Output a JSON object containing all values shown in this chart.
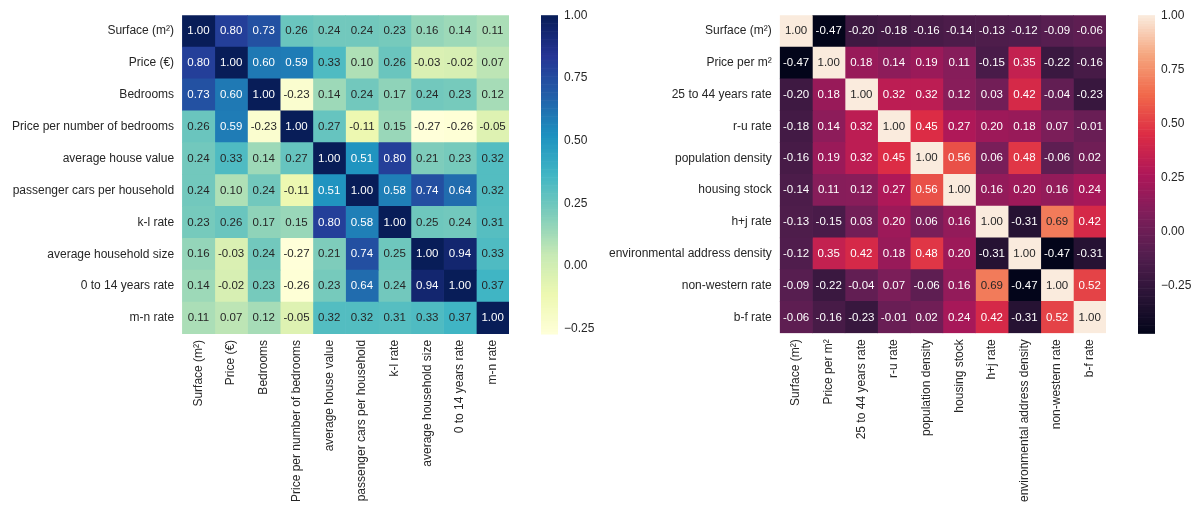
{
  "chart_data": [
    {
      "type": "heatmap",
      "categories": [
        "Surface (m²)",
        "Price (€)",
        "Bedrooms",
        "Price per number of bedrooms",
        "average house value",
        "passenger cars per household",
        "k-l rate",
        "average household size",
        "0 to 14 years rate",
        "m-n rate"
      ],
      "y_categories": [
        "Surface (m²)",
        "Price (€)",
        "Bedrooms",
        "Price per number of bedrooms",
        "average house value",
        "passenger cars per household",
        "k-l rate",
        "average household size",
        "0 to 14 years rate",
        "m-n rate"
      ],
      "cells": [
        [
          1.0,
          0.8,
          0.73,
          0.26,
          0.24,
          0.24,
          0.23,
          0.16,
          0.14,
          0.11
        ],
        [
          0.8,
          1.0,
          0.6,
          0.59,
          0.33,
          0.1,
          0.26,
          -0.03,
          -0.02,
          0.07
        ],
        [
          0.73,
          0.6,
          1.0,
          -0.23,
          0.14,
          0.24,
          0.17,
          0.24,
          0.23,
          0.12
        ],
        [
          0.26,
          0.59,
          -0.23,
          1.0,
          0.27,
          -0.11,
          0.15,
          -0.27,
          -0.26,
          -0.05
        ],
        [
          0.24,
          0.33,
          0.14,
          0.27,
          1.0,
          0.51,
          0.8,
          0.21,
          0.23,
          0.32
        ],
        [
          0.24,
          0.1,
          0.24,
          -0.11,
          0.51,
          1.0,
          0.58,
          0.74,
          0.64,
          0.32
        ],
        [
          0.23,
          0.26,
          0.17,
          0.15,
          0.8,
          0.58,
          1.0,
          0.25,
          0.24,
          0.31
        ],
        [
          0.16,
          -0.03,
          0.24,
          -0.27,
          0.21,
          0.74,
          0.25,
          1.0,
          0.94,
          0.33
        ],
        [
          0.14,
          -0.02,
          0.23,
          -0.26,
          0.23,
          0.64,
          0.24,
          0.94,
          1.0,
          0.37
        ],
        [
          0.11,
          0.07,
          0.12,
          -0.05,
          0.32,
          0.32,
          0.31,
          0.33,
          0.37,
          1.0
        ]
      ],
      "cell_labels": [
        [
          "1.00",
          "0.80",
          "0.73",
          "0.26",
          "0.24",
          "0.24",
          "0.23",
          "0.16",
          "0.14",
          "0.11"
        ],
        [
          "0.80",
          "1.00",
          "0.60",
          "0.59",
          "0.33",
          "0.10",
          "0.26",
          "-0.03",
          "-0.02",
          "0.07"
        ],
        [
          "0.73",
          "0.60",
          "1.00",
          "-0.23",
          "0.14",
          "0.24",
          "0.17",
          "0.24",
          "0.23",
          "0.12"
        ],
        [
          "0.26",
          "0.59",
          "-0.23",
          "1.00",
          "0.27",
          "-0.11",
          "0.15",
          "-0.27",
          "-0.26",
          "-0.05"
        ],
        [
          "0.24",
          "0.33",
          "0.14",
          "0.27",
          "1.00",
          "0.51",
          "0.80",
          "0.21",
          "0.23",
          "0.32"
        ],
        [
          "0.24",
          "0.10",
          "0.24",
          "-0.11",
          "0.51",
          "1.00",
          "0.58",
          "0.74",
          "0.64",
          "0.32"
        ],
        [
          "0.23",
          "0.26",
          "0.17",
          "0.15",
          "0.80",
          "0.58",
          "1.00",
          "0.25",
          "0.24",
          "0.31"
        ],
        [
          "0.16",
          "-0.03",
          "0.24",
          "-0.27",
          "0.21",
          "0.74",
          "0.25",
          "1.00",
          "0.94",
          "0.33"
        ],
        [
          "0.14",
          "-0.02",
          "0.23",
          "-0.26",
          "0.23",
          "0.64",
          "0.24",
          "0.94",
          "1.00",
          "0.37"
        ],
        [
          "0.11",
          "0.07",
          "0.12",
          "-0.05",
          "0.32",
          "0.32",
          "0.31",
          "0.33",
          "0.37",
          "1.00"
        ]
      ],
      "clim": [
        -0.27,
        1.0
      ],
      "cticks": [
        {
          "value": -0.25,
          "label": "−0.25"
        },
        {
          "value": 0,
          "label": "0.00"
        },
        {
          "value": 0.25,
          "label": "0.25"
        },
        {
          "value": 0.5,
          "label": "0.50"
        },
        {
          "value": 0.75,
          "label": "0.75"
        },
        {
          "value": 1,
          "label": "1.00"
        }
      ]
    },
    {
      "type": "heatmap",
      "categories": [
        "Surface (m²)",
        "Price per m²",
        "25 to 44 years rate",
        "r-u rate",
        "population density",
        "housing stock",
        "h+j rate",
        "environmental address density",
        "non-western rate",
        "b-f rate"
      ],
      "y_categories": [
        "Surface (m²)",
        "Price per m²",
        "25 to 44 years rate",
        "r-u rate",
        "population density",
        "housing stock",
        "h+j rate",
        "environmental address density",
        "non-western rate",
        "b-f rate"
      ],
      "cells": [
        [
          1.0,
          -0.47,
          -0.2,
          -0.18,
          -0.16,
          -0.14,
          -0.13,
          -0.12,
          -0.09,
          -0.06
        ],
        [
          -0.47,
          1.0,
          0.18,
          0.14,
          0.19,
          0.11,
          -0.15,
          0.35,
          -0.22,
          -0.16
        ],
        [
          -0.2,
          0.18,
          1.0,
          0.32,
          0.32,
          0.12,
          0.03,
          0.42,
          -0.04,
          -0.23
        ],
        [
          -0.18,
          0.14,
          0.32,
          1.0,
          0.45,
          0.27,
          0.2,
          0.18,
          0.07,
          -0.01
        ],
        [
          -0.16,
          0.19,
          0.32,
          0.45,
          1.0,
          0.56,
          0.06,
          0.48,
          -0.06,
          0.02
        ],
        [
          -0.14,
          0.11,
          0.12,
          0.27,
          0.56,
          1.0,
          0.16,
          0.2,
          0.16,
          0.24
        ],
        [
          -0.13,
          -0.15,
          0.03,
          0.2,
          0.06,
          0.16,
          1.0,
          -0.31,
          0.69,
          0.42
        ],
        [
          -0.12,
          0.35,
          0.42,
          0.18,
          0.48,
          0.2,
          -0.31,
          1.0,
          -0.47,
          -0.31
        ],
        [
          -0.09,
          -0.22,
          -0.04,
          0.07,
          -0.06,
          0.16,
          0.69,
          -0.47,
          1.0,
          0.52
        ],
        [
          -0.06,
          -0.16,
          -0.23,
          -0.01,
          0.02,
          0.24,
          0.42,
          -0.31,
          0.52,
          1.0
        ]
      ],
      "cell_labels": [
        [
          "1.00",
          "-0.47",
          "-0.20",
          "-0.18",
          "-0.16",
          "-0.14",
          "-0.13",
          "-0.12",
          "-0.09",
          "-0.06"
        ],
        [
          "-0.47",
          "1.00",
          "0.18",
          "0.14",
          "0.19",
          "0.11",
          "-0.15",
          "0.35",
          "-0.22",
          "-0.16"
        ],
        [
          "-0.20",
          "0.18",
          "1.00",
          "0.32",
          "0.32",
          "0.12",
          "0.03",
          "0.42",
          "-0.04",
          "-0.23"
        ],
        [
          "-0.18",
          "0.14",
          "0.32",
          "1.00",
          "0.45",
          "0.27",
          "0.20",
          "0.18",
          "0.07",
          "-0.01"
        ],
        [
          "-0.16",
          "0.19",
          "0.32",
          "0.45",
          "1.00",
          "0.56",
          "0.06",
          "0.48",
          "-0.06",
          "0.02"
        ],
        [
          "-0.14",
          "0.11",
          "0.12",
          "0.27",
          "0.56",
          "1.00",
          "0.16",
          "0.20",
          "0.16",
          "0.24"
        ],
        [
          "-0.13",
          "-0.15",
          "0.03",
          "0.20",
          "0.06",
          "0.16",
          "1.00",
          "-0.31",
          "0.69",
          "0.42"
        ],
        [
          "-0.12",
          "0.35",
          "0.42",
          "0.18",
          "0.48",
          "0.20",
          "-0.31",
          "1.00",
          "-0.47",
          "-0.31"
        ],
        [
          "-0.09",
          "-0.22",
          "-0.04",
          "0.07",
          "-0.06",
          "0.16",
          "0.69",
          "-0.47",
          "1.00",
          "0.52"
        ],
        [
          "-0.06",
          "-0.16",
          "-0.23",
          "-0.01",
          "0.02",
          "0.24",
          "0.42",
          "-0.31",
          "0.52",
          "1.00"
        ]
      ],
      "clim": [
        -0.47,
        1.0
      ],
      "cticks": [
        {
          "value": -0.25,
          "label": "−0.25"
        },
        {
          "value": 0,
          "label": "0.00"
        },
        {
          "value": 0.25,
          "label": "0.25"
        },
        {
          "value": 0.5,
          "label": "0.50"
        },
        {
          "value": 0.75,
          "label": "0.75"
        },
        {
          "value": 1,
          "label": "1.00"
        }
      ]
    }
  ]
}
